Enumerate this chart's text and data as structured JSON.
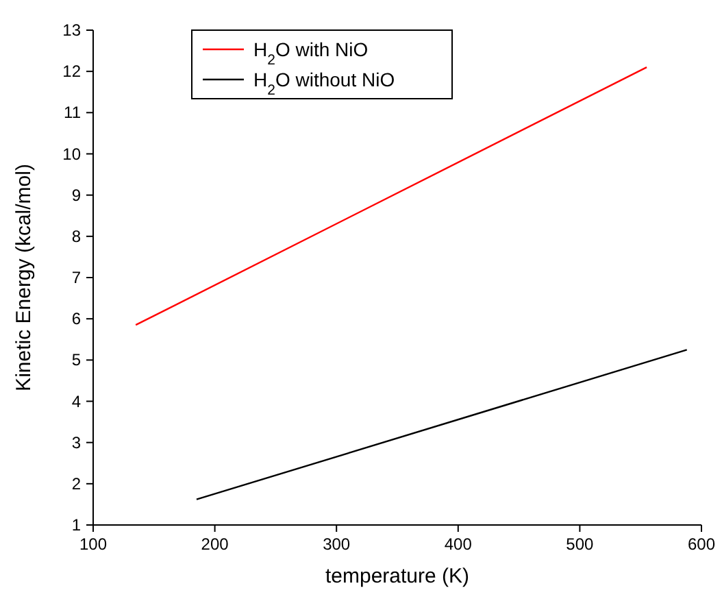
{
  "chart_data": {
    "type": "line",
    "xlabel": "temperature (K)",
    "ylabel": "Kinetic Energy (kcal/mol)",
    "series": [
      {
        "name": "H$_{2}$O with NiO",
        "color": "#ff0000",
        "x": [
          135,
          555
        ],
        "values": [
          5.85,
          12.1
        ]
      },
      {
        "name": "H$_{2}$O without NiO",
        "color": "#000000",
        "x": [
          185,
          588
        ],
        "values": [
          1.62,
          5.25
        ]
      }
    ],
    "xlim": [
      100,
      600
    ],
    "xticks": [
      100,
      200,
      300,
      400,
      500,
      600
    ],
    "ylim": [
      1,
      13
    ],
    "yticks": [
      1,
      2,
      3,
      4,
      5,
      6,
      7,
      8,
      9,
      10,
      11,
      12,
      13
    ],
    "legend": "top left",
    "grid": false,
    "marker": "none",
    "line_style": "solid"
  }
}
